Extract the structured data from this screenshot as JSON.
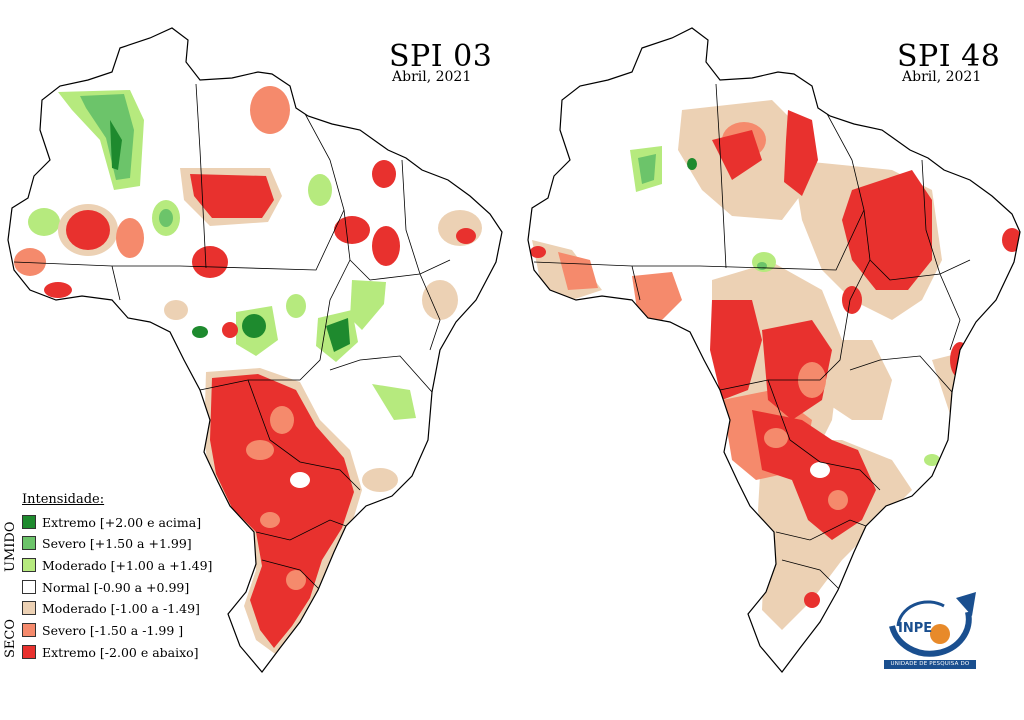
{
  "left_map": {
    "title": "SPI 03",
    "subtitle": "Abril, 2021"
  },
  "right_map": {
    "title": "SPI 48",
    "subtitle": "Abril, 2021"
  },
  "legend": {
    "title": "Intensidade:",
    "group_wet": "UMIDO",
    "group_dry": "SECO",
    "items": [
      {
        "label": "Extremo  [+2.00 e acima]",
        "color": "#1e8a2e"
      },
      {
        "label": "Severo   [+1.50 a +1.99]",
        "color": "#6cc46a"
      },
      {
        "label": "Moderado [+1.00 a +1.49]",
        "color": "#b6ea7e"
      },
      {
        "label": "Normal   [-0.90 a +0.99]",
        "color": "#ffffff"
      },
      {
        "label": "Moderado [-1.00 a -1.49]",
        "color": "#ecd1b4"
      },
      {
        "label": "Severo   [-1.50 a -1.99 ]",
        "color": "#f58a6c"
      },
      {
        "label": "Extremo  [-2.00 e abaixo]",
        "color": "#e8312e"
      }
    ]
  },
  "logo": {
    "name": "INPE",
    "caption": "UNIDADE DE PESQUISA DO MCTIC"
  }
}
